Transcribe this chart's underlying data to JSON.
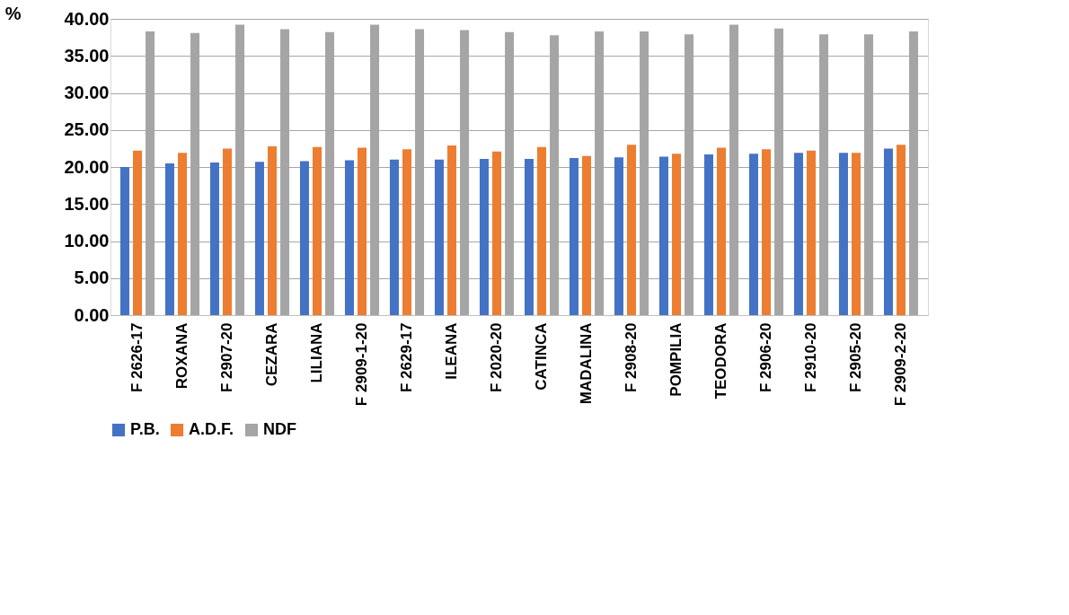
{
  "chart_data": {
    "type": "bar",
    "ylabel": "%",
    "categories": [
      "F 2626-17",
      "ROXANA",
      "F 2907-20",
      "CEZARA",
      "LILIANA",
      "F 2909-1-20",
      "F 2629-17",
      "ILEANA",
      "F  2020-20",
      "CATINCA",
      "MADALINA",
      "F 2908-20",
      "POMPILIA",
      "TEODORA",
      "F 2906-20",
      "F 2910-20",
      "F 2905-20",
      "F 2909-2-20"
    ],
    "series": [
      {
        "name": "P.B.",
        "color": "#4472c4",
        "values": [
          20.0,
          20.5,
          20.6,
          20.7,
          20.8,
          20.9,
          21.0,
          21.0,
          21.1,
          21.1,
          21.2,
          21.3,
          21.4,
          21.7,
          21.8,
          21.9,
          21.9,
          22.5
        ]
      },
      {
        "name": "A.D.F.",
        "color": "#ed7d31",
        "values": [
          22.2,
          21.9,
          22.5,
          22.8,
          22.7,
          22.6,
          22.4,
          22.9,
          22.1,
          22.7,
          21.5,
          23.0,
          21.8,
          22.6,
          22.4,
          22.2,
          21.9,
          23.0
        ]
      },
      {
        "name": "NDF",
        "color": "#a5a5a5",
        "values": [
          38.3,
          38.1,
          39.2,
          38.6,
          38.2,
          39.2,
          38.6,
          38.5,
          38.2,
          37.8,
          38.3,
          38.3,
          37.9,
          39.2,
          38.7,
          37.9,
          37.9,
          38.3
        ]
      }
    ],
    "ylim": [
      0,
      40
    ],
    "yticks": [
      {
        "value": 0,
        "label": "0.00"
      },
      {
        "value": 5,
        "label": "5.00"
      },
      {
        "value": 10,
        "label": "10.00"
      },
      {
        "value": 15,
        "label": "15.00"
      },
      {
        "value": 20,
        "label": "20.00"
      },
      {
        "value": 25,
        "label": "25.00"
      },
      {
        "value": 30,
        "label": "30.00"
      },
      {
        "value": 35,
        "label": "35.00"
      },
      {
        "value": 40,
        "label": "40.00"
      }
    ],
    "grid": "y",
    "legend": "bottom"
  }
}
